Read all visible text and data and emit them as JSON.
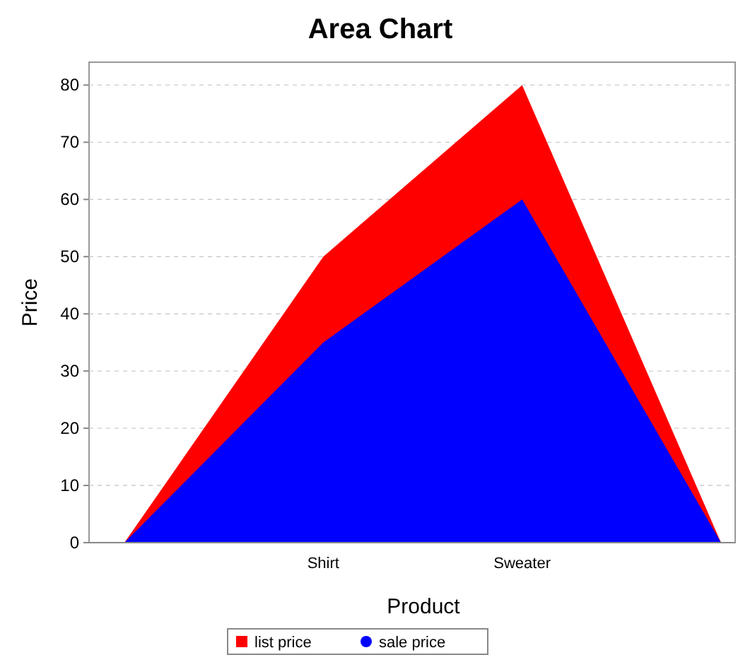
{
  "chart_data": {
    "type": "area",
    "title": "Area Chart",
    "xlabel": "Product",
    "ylabel": "Price",
    "categories": [
      null,
      "Shirt",
      "Sweater",
      null
    ],
    "series": [
      {
        "name": "list price",
        "color": "#ff0000",
        "values": [
          0,
          50,
          80,
          0
        ]
      },
      {
        "name": "sale price",
        "color": "#0000ff",
        "values": [
          0,
          35,
          60,
          0
        ]
      }
    ],
    "ylim": [
      0,
      84
    ],
    "yticks": [
      0,
      10,
      20,
      30,
      40,
      50,
      60,
      70,
      80
    ],
    "grid": "y",
    "legend": "bottom"
  }
}
